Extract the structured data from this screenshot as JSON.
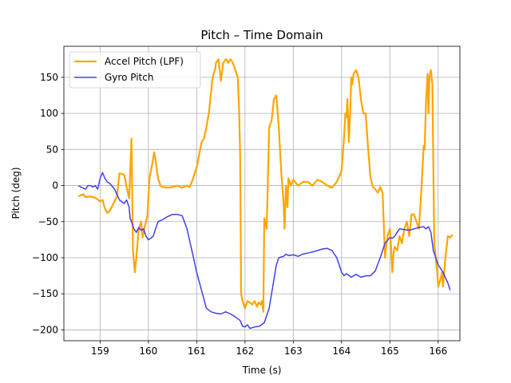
{
  "chart_data": {
    "type": "line",
    "title": "Pitch – Time Domain",
    "xlabel": "Time (s)",
    "ylabel": "Pitch (deg)",
    "xlim": [
      158.25,
      166.45
    ],
    "ylim": [
      -215,
      193
    ],
    "xticks": [
      159,
      160,
      161,
      162,
      163,
      164,
      165,
      166
    ],
    "yticks": [
      -200,
      -150,
      -100,
      -50,
      0,
      50,
      100,
      150
    ],
    "grid": true,
    "legend": "top-left",
    "series": [
      {
        "name": "Accel Pitch (LPF)",
        "color": "#FFA500",
        "x": [
          158.55,
          158.65,
          158.7,
          158.8,
          158.9,
          159.0,
          159.05,
          159.1,
          159.15,
          159.2,
          159.3,
          159.35,
          159.4,
          159.5,
          159.55,
          159.6,
          159.65,
          159.68,
          159.72,
          159.75,
          159.8,
          159.85,
          159.88,
          159.92,
          159.95,
          159.98,
          160.02,
          160.05,
          160.08,
          160.12,
          160.15,
          160.2,
          160.25,
          160.3,
          160.4,
          160.5,
          160.6,
          160.7,
          160.8,
          160.85,
          160.9,
          161.0,
          161.1,
          161.15,
          161.2,
          161.25,
          161.3,
          161.32,
          161.35,
          161.38,
          161.4,
          161.45,
          161.5,
          161.55,
          161.6,
          161.62,
          161.65,
          161.7,
          161.75,
          161.8,
          161.85,
          161.88,
          161.9,
          161.92,
          161.95,
          162.0,
          162.05,
          162.1,
          162.15,
          162.2,
          162.25,
          162.28,
          162.3,
          162.32,
          162.35,
          162.38,
          162.4,
          162.45,
          162.5,
          162.55,
          162.6,
          162.65,
          162.7,
          162.75,
          162.8,
          162.82,
          162.85,
          162.88,
          162.9,
          162.95,
          163.0,
          163.1,
          163.2,
          163.3,
          163.4,
          163.5,
          163.6,
          163.7,
          163.8,
          163.9,
          164.0,
          164.05,
          164.08,
          164.1,
          164.12,
          164.15,
          164.18,
          164.2,
          164.22,
          164.25,
          164.3,
          164.35,
          164.4,
          164.45,
          164.5,
          164.55,
          164.6,
          164.65,
          164.7,
          164.75,
          164.8,
          164.85,
          164.9,
          164.95,
          165.0,
          165.02,
          165.05,
          165.08,
          165.1,
          165.15,
          165.2,
          165.25,
          165.3,
          165.35,
          165.4,
          165.45,
          165.5,
          165.55,
          165.6,
          165.65,
          165.7,
          165.72,
          165.75,
          165.78,
          165.8,
          165.82,
          165.85,
          165.88,
          165.9,
          165.92,
          165.95,
          165.98,
          166.0,
          166.05,
          166.08,
          166.1,
          166.15,
          166.2,
          166.25,
          166.3
        ],
        "y": [
          -15,
          -12,
          -16,
          -15,
          -17,
          -22,
          -20,
          -32,
          -38,
          -35,
          -22,
          -15,
          17,
          15,
          -2,
          -18,
          65,
          -90,
          -120,
          -100,
          -60,
          -50,
          -72,
          -58,
          -50,
          -42,
          10,
          20,
          30,
          46,
          35,
          10,
          0,
          -2,
          -3,
          -2,
          0,
          -3,
          0,
          -2,
          5,
          25,
          60,
          65,
          80,
          100,
          130,
          145,
          155,
          160,
          170,
          175,
          145,
          170,
          175,
          175,
          170,
          175,
          170,
          160,
          150,
          100,
          40,
          -150,
          -160,
          -170,
          -160,
          -162,
          -165,
          -160,
          -168,
          -162,
          -163,
          -165,
          -160,
          -175,
          -45,
          -60,
          80,
          90,
          120,
          125,
          80,
          20,
          -25,
          -60,
          0,
          -30,
          10,
          0,
          8,
          0,
          5,
          5,
          0,
          8,
          5,
          0,
          -3,
          5,
          20,
          65,
          100,
          95,
          120,
          60,
          105,
          150,
          140,
          155,
          160,
          150,
          120,
          100,
          100,
          50,
          10,
          -2,
          -5,
          -10,
          -2,
          -10,
          -100,
          -70,
          -60,
          -80,
          -120,
          -90,
          -85,
          -90,
          -70,
          -80,
          -60,
          -50,
          -70,
          -40,
          -40,
          -50,
          -60,
          -10,
          55,
          50,
          120,
          155,
          100,
          150,
          160,
          140,
          30,
          -80,
          -100,
          -120,
          -140,
          -130,
          -120,
          -140,
          -100,
          -70,
          -72,
          -68
        ]
      },
      {
        "name": "Gyro Pitch",
        "color": "#4040EE",
        "x": [
          158.55,
          158.6,
          158.7,
          158.75,
          158.8,
          158.85,
          158.9,
          158.95,
          159.0,
          159.05,
          159.1,
          159.15,
          159.2,
          159.3,
          159.4,
          159.5,
          159.55,
          159.6,
          159.62,
          159.65,
          159.7,
          159.75,
          159.8,
          159.85,
          159.9,
          159.95,
          160.0,
          160.05,
          160.1,
          160.15,
          160.2,
          160.3,
          160.4,
          160.5,
          160.6,
          160.7,
          160.8,
          160.9,
          161.0,
          161.1,
          161.2,
          161.3,
          161.4,
          161.5,
          161.6,
          161.7,
          161.8,
          161.9,
          161.95,
          162.0,
          162.05,
          162.1,
          162.2,
          162.3,
          162.4,
          162.5,
          162.55,
          162.6,
          162.65,
          162.7,
          162.8,
          162.85,
          162.9,
          163.0,
          163.1,
          163.2,
          163.4,
          163.6,
          163.7,
          163.8,
          163.9,
          164.0,
          164.05,
          164.1,
          164.2,
          164.3,
          164.4,
          164.5,
          164.6,
          164.7,
          164.8,
          164.9,
          165.0,
          165.05,
          165.1,
          165.2,
          165.3,
          165.4,
          165.5,
          165.6,
          165.7,
          165.75,
          165.8,
          165.85,
          165.9,
          166.0,
          166.1,
          166.2,
          166.25
        ],
        "y": [
          0,
          -2,
          -5,
          0,
          0,
          -2,
          0,
          -5,
          10,
          18,
          10,
          5,
          3,
          -5,
          -20,
          -25,
          -20,
          -30,
          -45,
          -50,
          -60,
          -65,
          -58,
          -62,
          -60,
          -70,
          -75,
          -73,
          -70,
          -60,
          -50,
          -47,
          -43,
          -40,
          -40,
          -42,
          -60,
          -90,
          -120,
          -145,
          -170,
          -175,
          -177,
          -178,
          -175,
          -178,
          -182,
          -187,
          -195,
          -196,
          -193,
          -198,
          -196,
          -195,
          -190,
          -170,
          -150,
          -130,
          -110,
          -100,
          -98,
          -95,
          -97,
          -96,
          -98,
          -95,
          -92,
          -88,
          -87,
          -90,
          -100,
          -120,
          -125,
          -122,
          -127,
          -123,
          -127,
          -125,
          -125,
          -118,
          -100,
          -80,
          -72,
          -73,
          -70,
          -60,
          -61,
          -62,
          -60,
          -58,
          -57,
          -60,
          -57,
          -65,
          -90,
          -110,
          -120,
          -135,
          -145
        ]
      }
    ]
  }
}
